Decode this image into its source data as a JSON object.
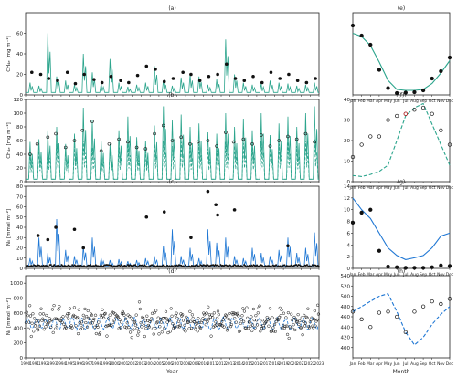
{
  "figure": {
    "xlabel_time": "Year",
    "xlabel_month": "Month",
    "years": [
      "1990",
      "1991",
      "1992",
      "1993",
      "1994",
      "1995",
      "1996",
      "1997",
      "1998",
      "1999",
      "2000",
      "2001",
      "2002",
      "2003",
      "2004",
      "2005",
      "2006",
      "2007",
      "2008",
      "2009",
      "2010",
      "2011",
      "2012",
      "2013",
      "2014",
      "2015",
      "2016",
      "2017",
      "2018",
      "2019",
      "2020",
      "2021",
      "2022",
      "2023"
    ],
    "months": [
      "Jan",
      "Feb",
      "Mar",
      "Apr",
      "May",
      "Jun",
      "Jul",
      "Aug",
      "Sep",
      "Oct",
      "Nov",
      "Dec"
    ]
  },
  "colors": {
    "teal": "#2ca58d",
    "blue": "#1f77d4",
    "red_marker": "#d62728",
    "axis": "#222222"
  },
  "chart_data": [
    {
      "id": "a",
      "label": "(a)",
      "type": "line",
      "ylabel": "CH₄ₑ [mg m⁻²]",
      "ylim": [
        0,
        80
      ],
      "yticks": [
        0,
        20,
        40,
        60
      ],
      "xlim": [
        1990,
        2023
      ],
      "series": [
        {
          "style": "solid",
          "color": "teal",
          "peak_heights": [
            12,
            9,
            60,
            18,
            14,
            10,
            40,
            22,
            11,
            35,
            12,
            8,
            10,
            12,
            28,
            14,
            9,
            17,
            20,
            18,
            10,
            15,
            54,
            20,
            12,
            10,
            11,
            14,
            12,
            11,
            9,
            10,
            12,
            14
          ]
        },
        {
          "style": "dots",
          "color": "black",
          "points": [
            [
              1990.7,
              22
            ],
            [
              1991.7,
              20
            ],
            [
              1992.6,
              16
            ],
            [
              1993.6,
              14
            ],
            [
              1994.7,
              22
            ],
            [
              1995.6,
              11
            ],
            [
              1996.6,
              20
            ],
            [
              1997.7,
              15
            ],
            [
              1998.6,
              12
            ],
            [
              1999.6,
              18
            ],
            [
              2000.7,
              14
            ],
            [
              2001.6,
              12
            ],
            [
              2002.6,
              19
            ],
            [
              2003.6,
              28
            ],
            [
              2004.6,
              25
            ],
            [
              2005.6,
              13
            ],
            [
              2006.6,
              16
            ],
            [
              2007.7,
              22
            ],
            [
              2008.6,
              20
            ],
            [
              2009.6,
              14
            ],
            [
              2010.6,
              18
            ],
            [
              2011.6,
              20
            ],
            [
              2012.6,
              30
            ],
            [
              2013.6,
              16
            ],
            [
              2014.6,
              14
            ],
            [
              2015.6,
              18
            ],
            [
              2016.6,
              12
            ],
            [
              2017.6,
              22
            ],
            [
              2018.6,
              16
            ],
            [
              2019.6,
              20
            ],
            [
              2020.6,
              14
            ],
            [
              2021.6,
              12
            ],
            [
              2022.6,
              16
            ]
          ]
        }
      ]
    },
    {
      "id": "b",
      "label": "(b)",
      "type": "line",
      "ylabel": "CH₄ₑ [mg m⁻²]",
      "ylim": [
        0,
        120
      ],
      "yticks": [
        0,
        20,
        40,
        60,
        80,
        100,
        120
      ],
      "xlim": [
        1990,
        2023
      ],
      "series": [
        {
          "style": "solid",
          "color": "teal",
          "peak_heights": [
            58,
            62,
            75,
            80,
            55,
            70,
            108,
            90,
            60,
            55,
            75,
            95,
            65,
            60,
            82,
            110,
            90,
            98,
            80,
            85,
            72,
            70,
            100,
            80,
            92,
            75,
            100,
            68,
            85,
            95,
            80,
            100,
            110,
            60
          ]
        },
        {
          "style": "dashed",
          "color": "teal",
          "peak_heights": [
            40,
            45,
            50,
            55,
            45,
            52,
            60,
            50,
            42,
            48,
            50,
            55,
            45,
            44,
            55,
            60,
            52,
            58,
            50,
            55,
            48,
            46,
            58,
            52,
            56,
            50,
            60,
            48,
            55,
            58,
            52,
            60,
            62,
            45
          ]
        },
        {
          "style": "open-circles",
          "color": "black",
          "points": [
            [
              1990.5,
              40
            ],
            [
              1991.3,
              55
            ],
            [
              1992.5,
              65
            ],
            [
              1993.4,
              70
            ],
            [
              1994.5,
              50
            ],
            [
              1995.5,
              60
            ],
            [
              1996.4,
              75
            ],
            [
              1997.5,
              88
            ],
            [
              1998.5,
              45
            ],
            [
              1999.4,
              55
            ],
            [
              2000.5,
              62
            ],
            [
              2001.5,
              58
            ],
            [
              2002.5,
              50
            ],
            [
              2003.5,
              48
            ],
            [
              2004.5,
              70
            ],
            [
              2005.5,
              82
            ],
            [
              2006.5,
              60
            ],
            [
              2007.5,
              65
            ],
            [
              2008.5,
              55
            ],
            [
              2009.4,
              58
            ],
            [
              2010.5,
              60
            ],
            [
              2011.5,
              52
            ],
            [
              2012.5,
              72
            ],
            [
              2013.4,
              58
            ],
            [
              2014.5,
              62
            ],
            [
              2015.5,
              55
            ],
            [
              2016.5,
              68
            ],
            [
              2017.5,
              52
            ],
            [
              2018.5,
              60
            ],
            [
              2019.5,
              66
            ],
            [
              2020.5,
              62
            ],
            [
              2021.5,
              70
            ],
            [
              2022.5,
              58
            ]
          ]
        }
      ]
    },
    {
      "id": "c",
      "label": "(c)",
      "type": "line",
      "ylabel": "N₀ [mmol m⁻²]",
      "ylim": [
        0,
        80
      ],
      "yticks": [
        0,
        10,
        20,
        30,
        40,
        50,
        60,
        70,
        80
      ],
      "xlim": [
        1990,
        2023
      ],
      "series": [
        {
          "style": "solid",
          "color": "blue",
          "peak_heights": [
            10,
            30,
            15,
            48,
            18,
            12,
            22,
            30,
            10,
            8,
            9,
            7,
            8,
            10,
            12,
            22,
            38,
            12,
            20,
            10,
            38,
            25,
            30,
            12,
            10,
            20,
            15,
            12,
            18,
            30,
            15,
            20,
            35,
            18
          ]
        },
        {
          "style": "dots",
          "color": "black",
          "points": [
            [
              1991.4,
              32
            ],
            [
              1992.5,
              28
            ],
            [
              1993.4,
              40
            ],
            [
              1995.5,
              38
            ],
            [
              1996.5,
              20
            ],
            [
              2003.6,
              50
            ],
            [
              2005.6,
              55
            ],
            [
              2008.6,
              30
            ],
            [
              2010.5,
              75
            ],
            [
              2011.4,
              62
            ],
            [
              2011.6,
              52
            ],
            [
              2013.5,
              57
            ],
            [
              2019.5,
              22
            ]
          ]
        }
      ]
    },
    {
      "id": "d",
      "label": "(d)",
      "type": "scatter",
      "ylabel": "N₀ [mmol m⁻²]",
      "ylim": [
        0,
        1100
      ],
      "yticks": [
        0,
        200,
        400,
        600,
        800,
        1000
      ],
      "xlim": [
        1990,
        2023
      ],
      "series": [
        {
          "style": "dashed",
          "color": "blue",
          "center": 460,
          "amplitude": 70
        },
        {
          "style": "open-circles",
          "color": "black",
          "center": 500,
          "spread": 180
        }
      ]
    },
    {
      "id": "e",
      "label": "(e)",
      "type": "line",
      "ylim": [
        0,
        18
      ],
      "yticks": [],
      "xlim": [
        1,
        12
      ],
      "series": [
        {
          "style": "solid",
          "color": "teal",
          "values": [
            13.5,
            12.8,
            10.8,
            7.2,
            3.2,
            1.2,
            1.0,
            1.0,
            1.2,
            2.5,
            4.8,
            7.5
          ]
        },
        {
          "style": "dots",
          "color": "black",
          "values": [
            15.2,
            13.0,
            11.0,
            5.5,
            1.5,
            0.4,
            0.5,
            0.6,
            1.0,
            3.6,
            5.2,
            8.2
          ]
        }
      ]
    },
    {
      "id": "f",
      "label": "(f)",
      "type": "line",
      "ylim": [
        0,
        40
      ],
      "yticks": [
        0,
        10,
        20,
        30,
        40
      ],
      "xlim": [
        1,
        12
      ],
      "series": [
        {
          "style": "dashed",
          "color": "teal",
          "values": [
            3,
            2.5,
            3.5,
            5,
            8,
            20,
            32,
            36,
            38,
            28,
            18,
            8
          ]
        },
        {
          "style": "open-circles",
          "color": "black",
          "values": [
            12,
            18,
            22,
            22,
            30,
            32,
            33,
            35,
            36,
            33,
            25,
            18
          ]
        },
        {
          "style": "open-circles",
          "color": "red_marker",
          "values": [
            null,
            null,
            null,
            null,
            null,
            null,
            33,
            null,
            null,
            null,
            null,
            null
          ]
        }
      ]
    },
    {
      "id": "g",
      "label": "(g)",
      "type": "line",
      "ylim": [
        0,
        14
      ],
      "yticks": [
        0,
        2,
        4,
        6,
        8,
        10,
        12,
        14
      ],
      "xlim": [
        1,
        12
      ],
      "series": [
        {
          "style": "solid",
          "color": "blue",
          "values": [
            12,
            10,
            8.5,
            6,
            3.5,
            2.2,
            1.5,
            1.8,
            2.2,
            3.5,
            5.5,
            6.0
          ]
        },
        {
          "style": "dots",
          "color": "black",
          "values": [
            7.8,
            9.5,
            10,
            3,
            0.3,
            0.2,
            0.1,
            0.1,
            0.1,
            0.2,
            0.5,
            0.4
          ]
        }
      ]
    },
    {
      "id": "h",
      "label": "(h)",
      "type": "line",
      "ylim": [
        380,
        540
      ],
      "yticks": [
        400,
        420,
        440,
        460,
        480,
        500,
        520,
        540
      ],
      "xlim": [
        1,
        12
      ],
      "series": [
        {
          "style": "dashed",
          "color": "blue",
          "values": [
            470,
            480,
            490,
            500,
            505,
            470,
            430,
            405,
            420,
            445,
            465,
            480
          ]
        },
        {
          "style": "open-circles",
          "color": "black",
          "values": [
            470,
            455,
            440,
            468,
            470,
            460,
            430,
            470,
            480,
            490,
            485,
            495
          ]
        }
      ]
    }
  ]
}
